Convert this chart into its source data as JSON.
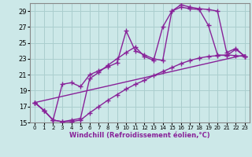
{
  "xlabel": "Windchill (Refroidissement éolien,°C)",
  "xlim": [
    -0.5,
    23.5
  ],
  "ylim": [
    15,
    30
  ],
  "xticks": [
    0,
    1,
    2,
    3,
    4,
    5,
    6,
    7,
    8,
    9,
    10,
    11,
    12,
    13,
    14,
    15,
    16,
    17,
    18,
    19,
    20,
    21,
    22,
    23
  ],
  "yticks": [
    15,
    17,
    19,
    21,
    23,
    25,
    27,
    29
  ],
  "background_color": "#cce8e8",
  "grid_color": "#aacece",
  "line_color": "#882299",
  "line_width": 1.0,
  "marker": "+",
  "marker_size": 4,
  "series": [
    {
      "x": [
        0,
        23
      ],
      "y": [
        17.5,
        23.5
      ],
      "has_marker": false
    },
    {
      "x": [
        0,
        1,
        2,
        3,
        4,
        5,
        6,
        7,
        8,
        9,
        10,
        11,
        12,
        13,
        14,
        15,
        16,
        17,
        18,
        19,
        20,
        21,
        22,
        23
      ],
      "y": [
        17.5,
        16.5,
        15.3,
        15.1,
        15.1,
        15.3,
        16.2,
        17.0,
        17.8,
        18.5,
        19.2,
        19.8,
        20.3,
        20.9,
        21.4,
        21.9,
        22.4,
        22.8,
        23.1,
        23.3,
        23.4,
        23.5,
        23.4,
        23.3
      ],
      "has_marker": true
    },
    {
      "x": [
        0,
        1,
        2,
        3,
        4,
        5,
        6,
        7,
        8,
        9,
        10,
        11,
        12,
        13,
        14,
        15,
        16,
        17,
        18,
        19,
        20,
        21,
        22,
        23
      ],
      "y": [
        17.5,
        16.5,
        15.3,
        19.8,
        20.0,
        19.5,
        21.0,
        21.5,
        22.0,
        22.5,
        26.5,
        24.0,
        23.5,
        23.0,
        22.8,
        29.0,
        29.5,
        29.3,
        29.2,
        27.2,
        23.5,
        23.4,
        24.2,
        23.3
      ],
      "has_marker": true
    },
    {
      "x": [
        0,
        1,
        2,
        3,
        4,
        5,
        6,
        7,
        8,
        9,
        10,
        11,
        12,
        13,
        14,
        15,
        16,
        17,
        18,
        19,
        20,
        21,
        22,
        23
      ],
      "y": [
        17.5,
        16.5,
        15.3,
        15.1,
        15.3,
        15.5,
        20.5,
        21.3,
        22.2,
        23.0,
        23.8,
        24.5,
        23.3,
        22.8,
        27.0,
        29.0,
        29.8,
        29.5,
        29.3,
        29.2,
        29.0,
        23.8,
        24.3,
        23.3
      ],
      "has_marker": true
    }
  ]
}
